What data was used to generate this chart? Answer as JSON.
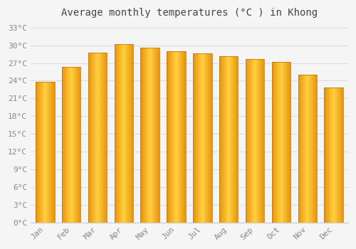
{
  "title": "Average monthly temperatures (°C ) in Khong",
  "months": [
    "Jan",
    "Feb",
    "Mar",
    "Apr",
    "May",
    "Jun",
    "Jul",
    "Aug",
    "Sep",
    "Oct",
    "Nov",
    "Dec"
  ],
  "values": [
    23.8,
    26.4,
    28.8,
    30.2,
    29.6,
    29.0,
    28.6,
    28.2,
    27.7,
    27.2,
    25.0,
    22.9
  ],
  "bar_color_left": "#E8920A",
  "bar_color_center": "#FFD040",
  "bar_color_right": "#E8920A",
  "bar_edge_color": "#B87010",
  "ylim": [
    0,
    34
  ],
  "yticks": [
    0,
    3,
    6,
    9,
    12,
    15,
    18,
    21,
    24,
    27,
    30,
    33
  ],
  "ytick_labels": [
    "0°C",
    "3°C",
    "6°C",
    "9°C",
    "12°C",
    "15°C",
    "18°C",
    "21°C",
    "24°C",
    "27°C",
    "30°C",
    "33°C"
  ],
  "background_color": "#f5f5f5",
  "plot_bg_color": "#f5f5f5",
  "grid_color": "#dddddd",
  "title_fontsize": 10,
  "tick_fontsize": 8,
  "tick_color": "#888888",
  "title_color": "#444444",
  "font_family": "monospace",
  "bar_width": 0.72,
  "figsize": [
    5.0,
    3.5
  ],
  "dpi": 100
}
